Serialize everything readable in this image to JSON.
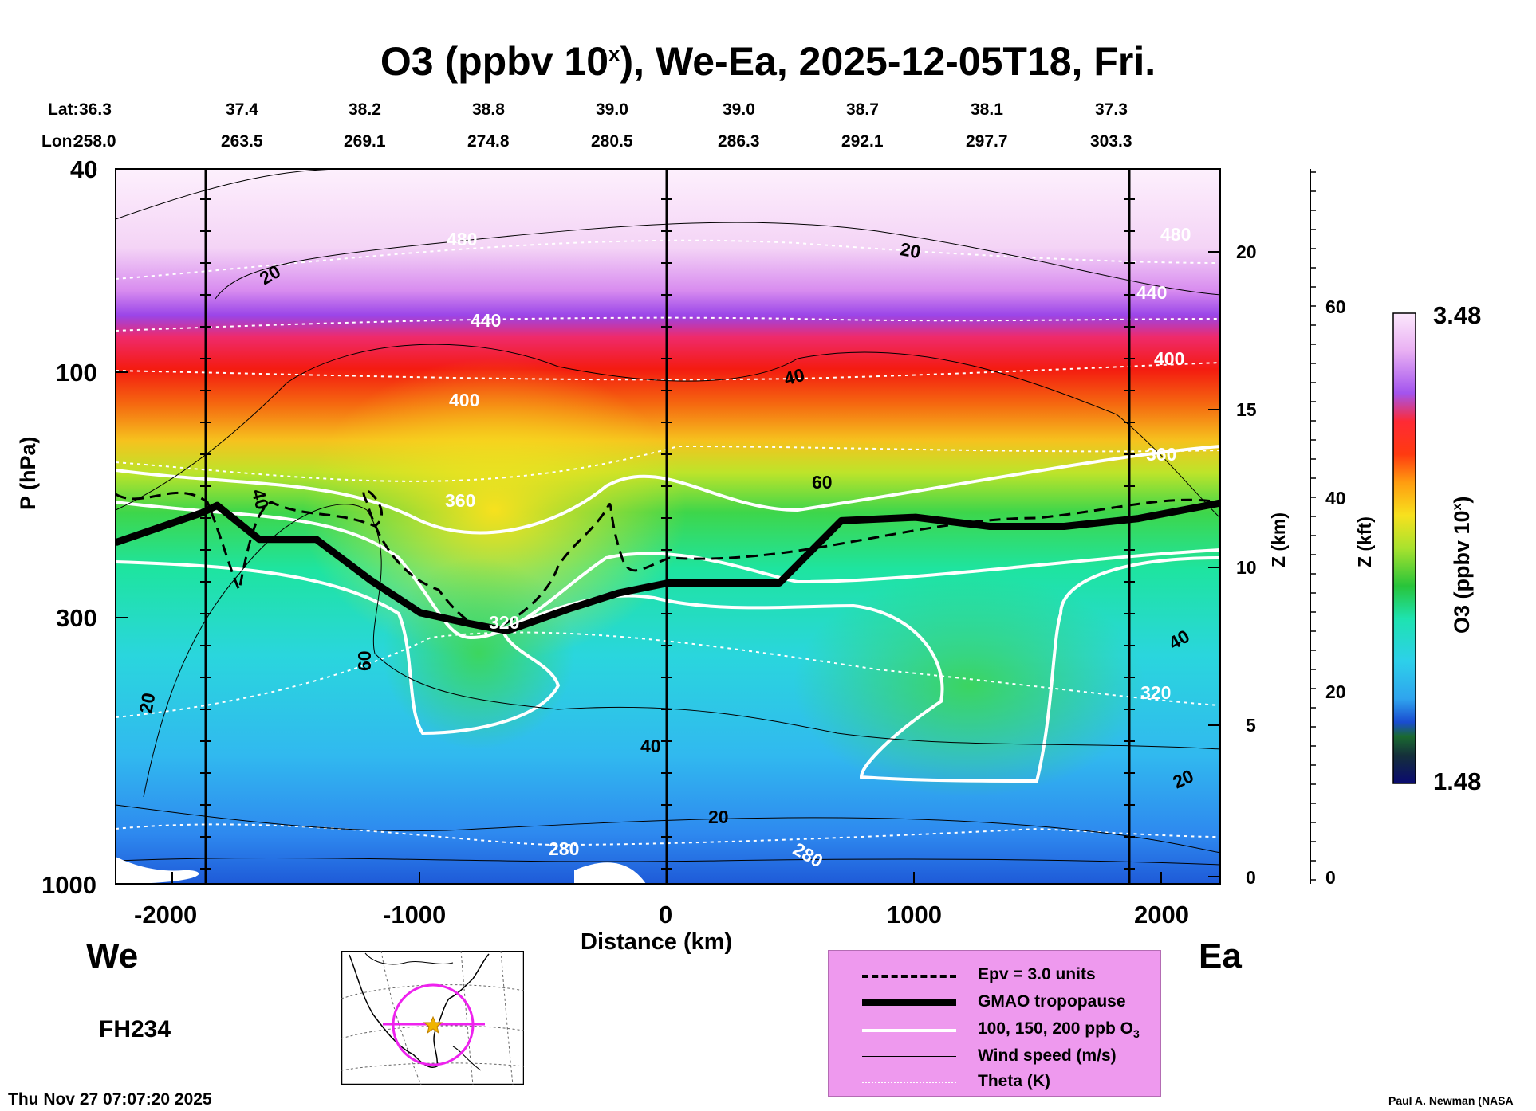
{
  "title": {
    "main": "O3 (ppbv 10",
    "sup": "x",
    "rest": "), We-Ea, 2025-12-05T18, Fri."
  },
  "header": {
    "lat_label": "Lat:",
    "lon_label": "Lon:",
    "lat_values": [
      "36.3",
      "37.4",
      "38.2",
      "38.8",
      "39.0",
      "39.0",
      "38.7",
      "38.1",
      "37.3"
    ],
    "lon_values": [
      "258.0",
      "263.5",
      "269.1",
      "274.8",
      "280.5",
      "286.3",
      "292.1",
      "297.7",
      "303.3"
    ]
  },
  "axes": {
    "y_label": "P (hPa)",
    "y_ticks": [
      "40",
      "100",
      "300",
      "1000"
    ],
    "x_label": "Distance (km)",
    "x_ticks": [
      "-2000",
      "-1000",
      "0",
      "1000",
      "2000"
    ],
    "z_km_label": "Z (km)",
    "z_km_ticks": [
      "20",
      "15",
      "10",
      "5",
      "0"
    ],
    "z_kft_label": "Z (kft)",
    "z_kft_ticks": [
      "60",
      "40",
      "20",
      "0"
    ]
  },
  "chart_data": {
    "type": "heatmap",
    "title": "O3 (ppbv 10^x), We-Ea, 2025-12-05T18, Fri.",
    "x_axis": {
      "label": "Distance (km)",
      "range": [
        -2230,
        2230
      ],
      "ticks": [
        -2000,
        -1000,
        0,
        1000,
        2000
      ]
    },
    "y_axis": {
      "label": "P (hPa)",
      "scale": "log",
      "range": [
        1000,
        40
      ],
      "ticks": [
        40,
        100,
        300,
        1000
      ]
    },
    "colorbar": {
      "label": "O3 (ppbv 10^x)",
      "min": 1.48,
      "max": 3.48
    },
    "tropopause_hpa": {
      "x": [
        -2230,
        -1880,
        -1820,
        -1650,
        -1420,
        -1200,
        -1000,
        -800,
        -650,
        -400,
        -200,
        0,
        200,
        450,
        700,
        1000,
        1300,
        1600,
        1900,
        2230
      ],
      "p": [
        215,
        188,
        182,
        212,
        212,
        255,
        295,
        310,
        320,
        290,
        270,
        258,
        258,
        258,
        195,
        192,
        200,
        200,
        193,
        180
      ]
    },
    "theta_labels_K": [
      280,
      320,
      360,
      400,
      440,
      480
    ],
    "wind_labels_ms": [
      20,
      40,
      60
    ],
    "annotations": {
      "left": "We",
      "right": "Ea",
      "forecast": "FH234"
    }
  },
  "colorbar": {
    "max_label": "3.48",
    "min_label": "1.48",
    "label": "O3 (ppbv 10",
    "label_sup": "x",
    "label_end": ")"
  },
  "contour_labels": {
    "theta": [
      "480",
      "480",
      "440",
      "440",
      "400",
      "400",
      "360",
      "360",
      "320",
      "320",
      "280",
      "280"
    ],
    "wind": [
      "20",
      "20",
      "40",
      "40",
      "60",
      "60",
      "40",
      "40",
      "20",
      "20",
      "20"
    ]
  },
  "side_labels": {
    "we": "We",
    "ea": "Ea",
    "fh": "FH234"
  },
  "legend": {
    "epv": "Epv = 3.0 units",
    "tropopause": "GMAO tropopause",
    "o3": "100, 150, 200 ppb O",
    "o3_sub": "3",
    "wind": "Wind speed (m/s)",
    "theta": "Theta (K)"
  },
  "footer": {
    "timestamp": "Thu Nov 27 07:07:20 2025",
    "credit": "Paul A. Newman (NASA"
  },
  "colors": {
    "tropopause": "#000000",
    "o3_contour": "#ffffff",
    "legend_bg": "#ee99ee",
    "map_circle": "#ee22ee",
    "map_star": "#f0b400"
  }
}
